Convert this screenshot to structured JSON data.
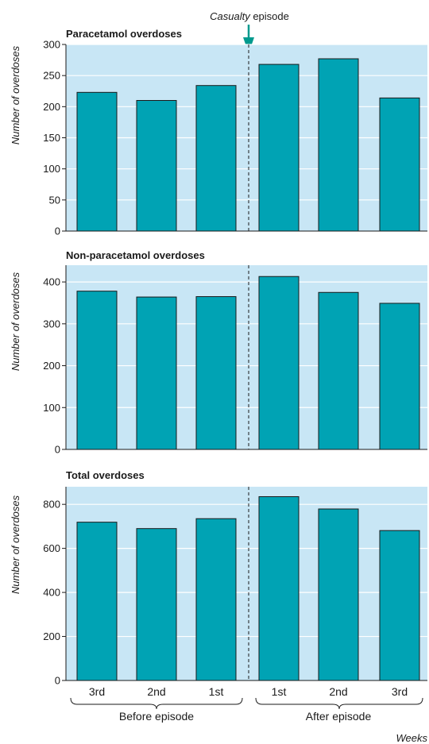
{
  "annotation": {
    "italic": "Casualty",
    "rest": " episode"
  },
  "chart_data": [
    {
      "type": "bar",
      "title": "Paracetamol overdoses",
      "ylabel": "Number of overdoses",
      "categories": [
        "3rd",
        "2nd",
        "1st",
        "1st",
        "2nd",
        "3rd"
      ],
      "values": [
        223,
        210,
        234,
        268,
        277,
        214
      ],
      "ylim": [
        0,
        300
      ],
      "yticks": [
        0,
        50,
        100,
        150,
        200,
        250,
        300
      ],
      "grid": true
    },
    {
      "type": "bar",
      "title": "Non-paracetamol overdoses",
      "ylabel": "Number of overdoses",
      "categories": [
        "3rd",
        "2nd",
        "1st",
        "1st",
        "2nd",
        "3rd"
      ],
      "values": [
        378,
        364,
        365,
        413,
        375,
        349
      ],
      "ylim": [
        0,
        440
      ],
      "yticks": [
        0,
        100,
        200,
        300,
        400
      ],
      "grid": true
    },
    {
      "type": "bar",
      "title": "Total overdoses",
      "ylabel": "Number of overdoses",
      "categories": [
        "3rd",
        "2nd",
        "1st",
        "1st",
        "2nd",
        "3rd"
      ],
      "values": [
        719,
        690,
        735,
        835,
        779,
        681
      ],
      "ylim": [
        0,
        880
      ],
      "yticks": [
        0,
        200,
        400,
        600,
        800
      ],
      "grid": true
    }
  ],
  "x_axis": {
    "categories": [
      "3rd",
      "2nd",
      "1st",
      "1st",
      "2nd",
      "3rd"
    ],
    "groups": [
      "Before episode",
      "After episode"
    ],
    "label": "Weeks"
  },
  "colors": {
    "bar": "#00a3b4",
    "bar_edge": "#1a1a1a",
    "panel_bg": "#c8e6f5",
    "grid": "#ffffff",
    "arrow": "#009a8e"
  }
}
